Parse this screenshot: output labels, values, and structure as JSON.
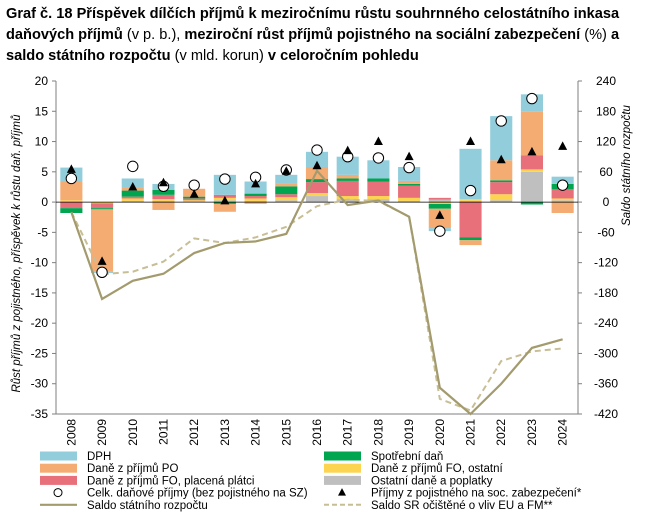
{
  "title_parts": [
    {
      "text": "Graf č. 18 Příspěvek dílčích příjmů k meziročnímu růstu souhrnného celostátního inkasa daňových příjmů",
      "bold": true
    },
    {
      "text": " (v p. b.), ",
      "bold": false
    },
    {
      "text": "meziroční růst příjmů pojistného na sociální zabezpečení",
      "bold": true
    },
    {
      "text": " (%) ",
      "bold": false
    },
    {
      "text": "a saldo státního rozpočtu",
      "bold": true
    },
    {
      "text": " (v mld. korun) ",
      "bold": false
    },
    {
      "text": "v celoročním pohledu",
      "bold": true
    }
  ],
  "chart_data": {
    "type": "bar",
    "stacked": true,
    "categories": [
      "2008",
      "2009",
      "2010",
      "2011",
      "2012",
      "2013",
      "2014",
      "2015",
      "2016",
      "2017",
      "2018",
      "2019",
      "2020",
      "2021",
      "2022",
      "2023",
      "2024"
    ],
    "y_left": {
      "label": "Růst příjmů z pojistného, příspěvek k růstu daň. příjmů",
      "range": [
        -35,
        20
      ],
      "ticks": [
        20,
        15,
        10,
        5,
        0,
        -5,
        -10,
        -15,
        -20,
        -25,
        -30,
        -35
      ]
    },
    "y_right": {
      "label": "Saldo státního rozpočtu",
      "range": [
        -420,
        240
      ],
      "ticks": [
        240,
        180,
        120,
        60,
        0,
        -60,
        -120,
        -180,
        -240,
        -300,
        -360,
        -420
      ]
    },
    "colors": {
      "DPH": "#92CDDC",
      "PO": "#F5AC73",
      "FO_placena": "#E7707A",
      "Spotrebni": "#00A550",
      "FO_ostatni": "#FDD44F",
      "Ostatni": "#BFBFBF",
      "saldo": "#A39B6E",
      "saldo_sr": "#C8BE95"
    },
    "series": [
      {
        "key": "DPH",
        "name": "DPH",
        "values": [
          2.3,
          -0.3,
          1.5,
          1.0,
          0.0,
          3.3,
          2.0,
          1.5,
          2.5,
          3.0,
          3.0,
          2.3,
          -0.5,
          8.3,
          7.3,
          2.8,
          1.2
        ]
      },
      {
        "key": "PO",
        "name": "Daně z příjmů PO",
        "values": [
          3.1,
          -10.2,
          0.5,
          -1.3,
          1.3,
          -1.3,
          -0.3,
          0.4,
          2.0,
          0.6,
          0.0,
          0.5,
          -3.2,
          -0.8,
          3.3,
          7.3,
          -1.8
        ]
      },
      {
        "key": "FO_placena",
        "name": "Daně z příjmů FO, placená plátci",
        "values": [
          -1.0,
          -0.8,
          0.3,
          0.7,
          0.3,
          0.5,
          0.4,
          0.5,
          1.8,
          2.5,
          2.4,
          2.0,
          0.3,
          -5.8,
          2.0,
          2.3,
          1.5
        ]
      },
      {
        "key": "Spotrebni",
        "name": "Spotřební daň",
        "values": [
          -0.8,
          -0.2,
          1.0,
          0.8,
          0.3,
          -0.3,
          0.4,
          1.3,
          0.5,
          0.4,
          0.5,
          0.3,
          -0.8,
          -0.5,
          0.3,
          -0.4,
          0.9
        ]
      },
      {
        "key": "FO_ostatni",
        "name": "Daně z příjmů FO, ostatní",
        "values": [
          0.3,
          -0.2,
          0.4,
          0.3,
          0.3,
          0.4,
          0.4,
          0.5,
          0.5,
          0.5,
          0.5,
          0.5,
          -0.3,
          0.3,
          1.0,
          0.4,
          0.3
        ]
      },
      {
        "key": "Ostatni",
        "name": "Ostatní daně a poplatky",
        "values": [
          0.0,
          0.0,
          0.2,
          0.2,
          0.0,
          0.3,
          0.2,
          0.3,
          1.0,
          0.5,
          0.5,
          0.2,
          0.4,
          0.2,
          0.3,
          5.0,
          0.3
        ]
      }
    ],
    "celk_danove_prijmy": {
      "name": "Celk. daňové příjmy (bez pojistného na SZ)",
      "values": [
        3.9,
        -11.6,
        5.9,
        2.6,
        2.8,
        3.8,
        4.1,
        5.3,
        8.6,
        7.5,
        7.3,
        5.7,
        -4.8,
        1.9,
        13.4,
        17.1,
        2.8
      ]
    },
    "prijmy_z_pojistneho": {
      "name": "Příjmy z pojistného na soc. zabezpečení*",
      "values": [
        5.4,
        -9.8,
        2.5,
        3.2,
        1.3,
        0.2,
        3.0,
        5.1,
        6.0,
        8.5,
        10.0,
        7.5,
        -2.2,
        10.0,
        7.0,
        8.3,
        9.2
      ]
    },
    "saldo": {
      "name": "Saldo státního rozpočtu",
      "values": [
        -20,
        -192,
        -156,
        -142,
        -101,
        -81,
        -78,
        -63,
        62,
        -6,
        3,
        -29,
        -368,
        -420,
        -360,
        -289,
        -272
      ]
    },
    "saldo_sr": {
      "name": "Saldo SR očištěné o vliv EU a FM**",
      "values": [
        -20,
        -143,
        -138,
        -118,
        -72,
        -81,
        -70,
        -49,
        -8,
        5,
        2,
        -29,
        -390,
        -413,
        -315,
        -296,
        -290
      ]
    },
    "legend": [
      {
        "key": "DPH",
        "label": "DPH",
        "kind": "bar"
      },
      {
        "key": "Spotrebni",
        "label": "Spotřební daň",
        "kind": "bar"
      },
      {
        "key": "PO",
        "label": "Daně z příjmů PO",
        "kind": "bar"
      },
      {
        "key": "FO_ostatni",
        "label": "Daně z příjmů FO, ostatní",
        "kind": "bar"
      },
      {
        "key": "FO_placena",
        "label": "Daně z příjmů FO, placená plátci",
        "kind": "bar"
      },
      {
        "key": "Ostatni",
        "label": "Ostatní daně a poplatky",
        "kind": "bar"
      },
      {
        "key": "celk",
        "label": "Celk. daňové příjmy (bez pojistného na SZ)",
        "kind": "circle"
      },
      {
        "key": "pojistne",
        "label": "Příjmy z pojistného na soc. zabezpečení*",
        "kind": "triangle"
      },
      {
        "key": "saldo",
        "label": "Saldo státního rozpočtu",
        "kind": "line"
      },
      {
        "key": "saldo_sr",
        "label": "Saldo SR očištěné o vliv EU a FM**",
        "kind": "dashed"
      }
    ]
  }
}
